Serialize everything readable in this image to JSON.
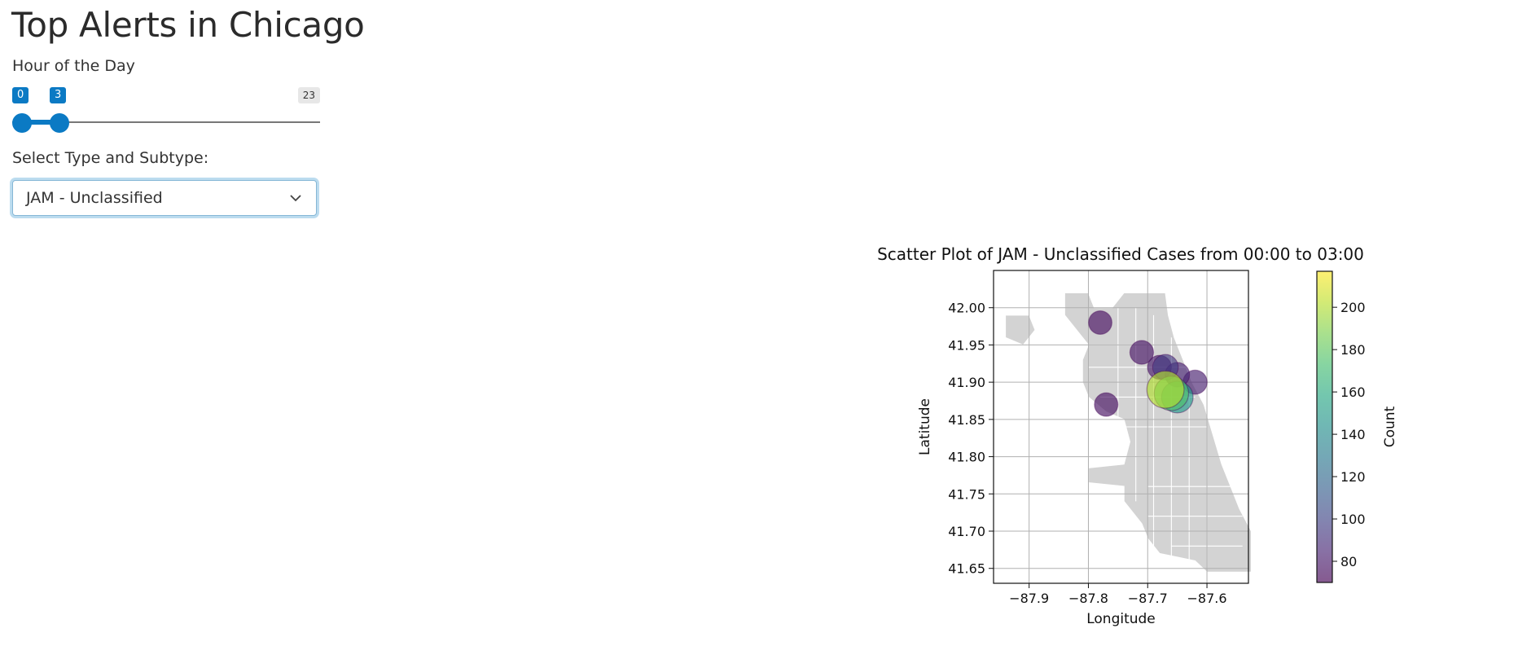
{
  "page": {
    "title": "Top Alerts in Chicago"
  },
  "slider": {
    "label": "Hour of the Day",
    "min": 0,
    "max": 23,
    "low": 0,
    "high": 3,
    "low_label": "0",
    "high_label": "3",
    "max_label": "23",
    "accent": "#0b7ac4"
  },
  "select": {
    "label": "Select Type and Subtype:",
    "value": "JAM - Unclassified",
    "icon": "chevron-down-icon"
  },
  "chart_data": {
    "type": "scatter",
    "title": "Scatter Plot of JAM - Unclassified Cases from 00:00 to 03:00",
    "xlabel": "Longitude",
    "ylabel": "Latitude",
    "xlim": [
      -87.96,
      -87.53
    ],
    "ylim": [
      41.63,
      42.05
    ],
    "xticks": [
      -87.9,
      -87.8,
      -87.7,
      -87.6
    ],
    "xtick_labels": [
      "−87.9",
      "−87.8",
      "−87.7",
      "−87.6"
    ],
    "yticks": [
      41.65,
      41.7,
      41.75,
      41.8,
      41.85,
      41.9,
      41.95,
      42.0
    ],
    "ytick_labels": [
      "41.65",
      "41.70",
      "41.75",
      "41.80",
      "41.85",
      "41.90",
      "41.95",
      "42.00"
    ],
    "grid": true,
    "background_map": "Chicago community areas",
    "colormap": "viridis",
    "colorbar": {
      "label": "Count",
      "range": [
        70,
        217
      ],
      "ticks": [
        80,
        100,
        120,
        140,
        160,
        180,
        200
      ],
      "tick_labels": [
        "80",
        "100",
        "120",
        "140",
        "160",
        "180",
        "200"
      ]
    },
    "points": [
      {
        "x": -87.78,
        "y": 41.98,
        "count": 75
      },
      {
        "x": -87.71,
        "y": 41.94,
        "count": 78
      },
      {
        "x": -87.77,
        "y": 41.87,
        "count": 76
      },
      {
        "x": -87.68,
        "y": 41.92,
        "count": 80
      },
      {
        "x": -87.67,
        "y": 41.92,
        "count": 95
      },
      {
        "x": -87.65,
        "y": 41.91,
        "count": 85
      },
      {
        "x": -87.62,
        "y": 41.9,
        "count": 82
      },
      {
        "x": -87.67,
        "y": 41.89,
        "count": 200
      },
      {
        "x": -87.66,
        "y": 41.885,
        "count": 175
      },
      {
        "x": -87.65,
        "y": 41.88,
        "count": 150
      }
    ]
  }
}
